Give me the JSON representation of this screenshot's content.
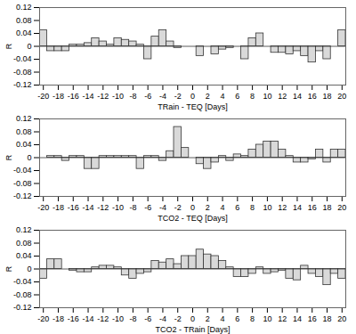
{
  "chart_data": [
    {
      "type": "bar",
      "x_label": "TRain - TEQ [Days]",
      "y_label": "R",
      "color": "#d9d9d9",
      "x": [
        -20,
        -19,
        -18,
        -17,
        -16,
        -15,
        -14,
        -13,
        -12,
        -11,
        -10,
        -9,
        -8,
        -7,
        -6,
        -5,
        -4,
        -3,
        -2,
        -1,
        0,
        1,
        2,
        3,
        4,
        5,
        6,
        7,
        8,
        9,
        10,
        11,
        12,
        13,
        14,
        15,
        16,
        17,
        18,
        19,
        20
      ],
      "values": [
        0.05,
        -0.015,
        -0.015,
        -0.015,
        0.005,
        0.005,
        0.01,
        0.025,
        0.015,
        0.005,
        0.025,
        0.02,
        0.015,
        0.005,
        -0.04,
        0.03,
        0.05,
        0.015,
        -0.005,
        0.0,
        0.0,
        -0.03,
        0.0,
        -0.025,
        -0.01,
        -0.005,
        0.0,
        -0.04,
        0.025,
        0.04,
        0.0,
        -0.02,
        -0.02,
        -0.025,
        -0.015,
        -0.03,
        -0.05,
        -0.015,
        -0.04,
        0.0,
        0.05
      ],
      "xlim": [
        -20.5,
        20.5
      ],
      "xticks": [
        -20,
        -18,
        -16,
        -14,
        -12,
        -10,
        -8,
        -6,
        -4,
        -2,
        0,
        2,
        4,
        6,
        8,
        10,
        12,
        14,
        16,
        18,
        20
      ],
      "ylim": [
        -0.12,
        0.12
      ],
      "yticks": [
        -0.12,
        -0.08,
        -0.04,
        0,
        0.04,
        0.08,
        0.12
      ]
    },
    {
      "type": "bar",
      "x_label": "TCO2 - TEQ [Days]",
      "y_label": "R",
      "color": "#d9d9d9",
      "x": [
        -20,
        -19,
        -18,
        -17,
        -16,
        -15,
        -14,
        -13,
        -12,
        -11,
        -10,
        -9,
        -8,
        -7,
        -6,
        -5,
        -4,
        -3,
        -2,
        -1,
        0,
        1,
        2,
        3,
        4,
        5,
        6,
        7,
        8,
        9,
        10,
        11,
        12,
        13,
        14,
        15,
        16,
        17,
        18,
        19,
        20
      ],
      "values": [
        0.0,
        0.005,
        0.005,
        -0.01,
        0.005,
        0.005,
        -0.035,
        -0.035,
        0.005,
        0.005,
        0.005,
        0.005,
        0.005,
        -0.035,
        0.005,
        0.005,
        -0.01,
        0.02,
        0.095,
        0.03,
        0.0,
        -0.02,
        -0.035,
        -0.015,
        0.005,
        -0.01,
        0.01,
        0.005,
        0.025,
        0.04,
        0.05,
        0.05,
        0.025,
        0.005,
        -0.015,
        -0.015,
        -0.005,
        0.025,
        -0.015,
        0.025,
        0.025
      ],
      "xlim": [
        -20.5,
        20.5
      ],
      "xticks": [
        -20,
        -18,
        -16,
        -14,
        -12,
        -10,
        -8,
        -6,
        -4,
        -2,
        0,
        2,
        4,
        6,
        8,
        10,
        12,
        14,
        16,
        18,
        20
      ],
      "ylim": [
        -0.12,
        0.12
      ],
      "yticks": [
        -0.12,
        -0.08,
        -0.04,
        0,
        0.04,
        0.08,
        0.12
      ]
    },
    {
      "type": "bar",
      "x_label": "TCO2 - TRain [Days]",
      "y_label": "R",
      "color": "#d9d9d9",
      "x": [
        -20,
        -19,
        -18,
        -17,
        -16,
        -15,
        -14,
        -13,
        -12,
        -11,
        -10,
        -9,
        -8,
        -7,
        -6,
        -5,
        -4,
        -3,
        -2,
        -1,
        0,
        1,
        2,
        3,
        4,
        5,
        6,
        7,
        8,
        9,
        10,
        11,
        12,
        13,
        14,
        15,
        16,
        17,
        18,
        19,
        20
      ],
      "values": [
        -0.03,
        0.03,
        0.03,
        0.0,
        -0.005,
        -0.01,
        -0.01,
        0.005,
        0.01,
        0.01,
        0.005,
        -0.02,
        -0.03,
        -0.015,
        -0.01,
        0.025,
        0.02,
        0.03,
        0.015,
        0.04,
        0.04,
        0.06,
        0.045,
        0.04,
        0.025,
        0.005,
        -0.025,
        -0.025,
        -0.015,
        0.005,
        -0.015,
        -0.01,
        -0.005,
        -0.03,
        -0.035,
        0.01,
        -0.015,
        -0.025,
        -0.05,
        -0.015,
        -0.03
      ],
      "xlim": [
        -20.5,
        20.5
      ],
      "xticks": [
        -20,
        -18,
        -16,
        -14,
        -12,
        -10,
        -8,
        -6,
        -4,
        -2,
        0,
        2,
        4,
        6,
        8,
        10,
        12,
        14,
        16,
        18,
        20
      ],
      "ylim": [
        -0.12,
        0.12
      ],
      "yticks": [
        -0.12,
        -0.08,
        -0.04,
        0,
        0.04,
        0.08,
        0.12
      ]
    }
  ]
}
